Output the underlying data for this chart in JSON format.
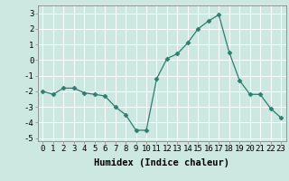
{
  "x": [
    0,
    1,
    2,
    3,
    4,
    5,
    6,
    7,
    8,
    9,
    10,
    11,
    12,
    13,
    14,
    15,
    16,
    17,
    18,
    19,
    20,
    21,
    22,
    23
  ],
  "y": [
    -2.0,
    -2.2,
    -1.8,
    -1.8,
    -2.1,
    -2.2,
    -2.3,
    -3.0,
    -3.5,
    -4.5,
    -4.5,
    -1.2,
    0.1,
    0.4,
    1.1,
    2.0,
    2.5,
    2.9,
    0.5,
    -1.3,
    -2.2,
    -2.2,
    -3.1,
    -3.7
  ],
  "xlabel": "Humidex (Indice chaleur)",
  "ylim": [
    -5.2,
    3.5
  ],
  "xlim": [
    -0.5,
    23.5
  ],
  "line_color": "#2e7d6e",
  "marker": "D",
  "marker_size": 2.5,
  "bg_color": "#cce8e0",
  "grid_color": "#ffffff",
  "tick_labels": [
    "0",
    "1",
    "2",
    "3",
    "4",
    "5",
    "6",
    "7",
    "8",
    "9",
    "10",
    "11",
    "12",
    "13",
    "14",
    "15",
    "16",
    "17",
    "18",
    "19",
    "20",
    "21",
    "22",
    "23"
  ],
  "yticks": [
    -5,
    -4,
    -3,
    -2,
    -1,
    0,
    1,
    2,
    3
  ],
  "xlabel_fontsize": 7.5,
  "tick_fontsize": 6.5
}
